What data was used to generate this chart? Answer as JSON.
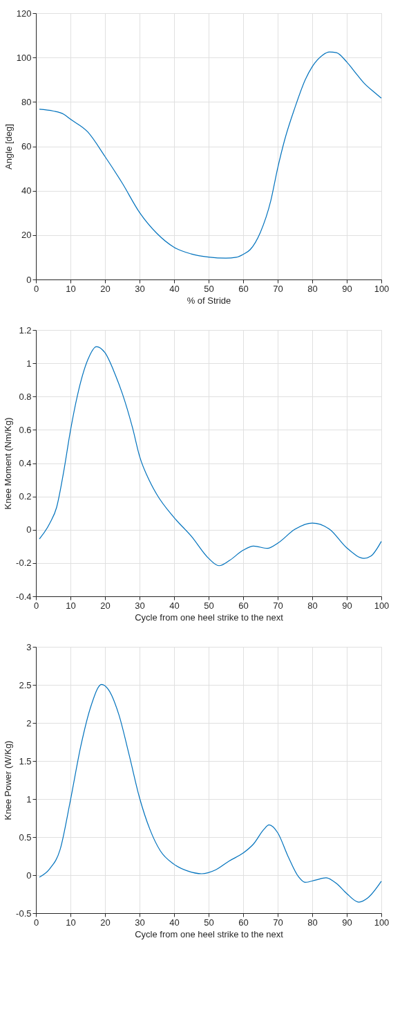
{
  "chart_data": [
    {
      "type": "line",
      "xlabel": "% of Stride",
      "ylabel": "Angle [deg]",
      "grid": true,
      "x": [
        1,
        5,
        8,
        10,
        15,
        20,
        25,
        30,
        35,
        40,
        45,
        50,
        55,
        58,
        60,
        62,
        65,
        68,
        70,
        72,
        75,
        78,
        80,
        83,
        85,
        87,
        90,
        93,
        95,
        98,
        100
      ],
      "series": [
        {
          "color": "#0072bd",
          "values": [
            76.7,
            75.9,
            74.5,
            72.2,
            66.5,
            55.4,
            43.4,
            30.2,
            20.8,
            14.5,
            11.5,
            10.1,
            9.6,
            10,
            11.3,
            13.4,
            21.3,
            35.5,
            50.2,
            62.8,
            77.5,
            90.1,
            95.9,
            101.1,
            102.5,
            102.2,
            98,
            92.2,
            88.5,
            84.3,
            81.7
          ]
        }
      ],
      "xlim": [
        0,
        100
      ],
      "xticks": [
        0,
        10,
        20,
        30,
        40,
        50,
        60,
        70,
        80,
        90,
        100
      ],
      "ylim": [
        0,
        120
      ],
      "yticks": [
        0,
        20,
        40,
        60,
        80,
        100,
        120
      ]
    },
    {
      "type": "line",
      "xlabel": "Cycle from one heel strike to the next",
      "ylabel": "Knee Moment (Nm/Kg)",
      "grid": true,
      "x": [
        1,
        4,
        6,
        8,
        10,
        12,
        15,
        17.5,
        20,
        23,
        25,
        28,
        30,
        33,
        35,
        40,
        45,
        50,
        53,
        56,
        60,
        63,
        67,
        70,
        75,
        80,
        85,
        90,
        95,
        97,
        100
      ],
      "series": [
        {
          "color": "#0072bd",
          "values": [
            -0.056,
            0.038,
            0.135,
            0.344,
            0.596,
            0.805,
            1.02,
            1.1,
            1.063,
            0.93,
            0.819,
            0.61,
            0.442,
            0.289,
            0.212,
            0.073,
            -0.039,
            -0.172,
            -0.216,
            -0.185,
            -0.123,
            -0.098,
            -0.112,
            -0.081,
            0.003,
            0.04,
            0.003,
            -0.109,
            -0.172,
            -0.158,
            -0.07
          ]
        }
      ],
      "xlim": [
        0,
        100
      ],
      "xticks": [
        0,
        10,
        20,
        30,
        40,
        50,
        60,
        70,
        80,
        90,
        100
      ],
      "ylim": [
        -0.4,
        1.2
      ],
      "yticks": [
        -0.4,
        -0.2,
        0,
        0.2,
        0.4,
        0.6,
        0.8,
        1,
        1.2
      ]
    },
    {
      "type": "line",
      "xlabel": "Cycle from one heel strike to the next",
      "ylabel": "Knee Power (W/Kg)",
      "grid": true,
      "x": [
        1,
        4,
        7,
        10,
        13,
        16,
        19,
        21,
        24,
        27,
        30,
        33,
        36,
        40,
        44,
        48,
        52,
        56,
        60,
        63,
        66,
        67.5,
        70,
        73,
        76,
        78,
        81,
        84,
        87,
        90,
        93.5,
        96,
        100
      ],
      "series": [
        {
          "color": "#0072bd",
          "values": [
            -0.027,
            0.083,
            0.335,
            0.986,
            1.697,
            2.23,
            2.505,
            2.437,
            2.11,
            1.578,
            1.016,
            0.601,
            0.32,
            0.142,
            0.053,
            0.018,
            0.068,
            0.187,
            0.29,
            0.409,
            0.601,
            0.66,
            0.557,
            0.246,
            -0.02,
            -0.095,
            -0.065,
            -0.036,
            -0.11,
            -0.243,
            -0.355,
            -0.302,
            -0.08
          ]
        }
      ],
      "xlim": [
        0,
        100
      ],
      "xticks": [
        0,
        10,
        20,
        30,
        40,
        50,
        60,
        70,
        80,
        90,
        100
      ],
      "ylim": [
        -0.5,
        3
      ],
      "yticks": [
        -0.5,
        0,
        0.5,
        1,
        1.5,
        2,
        2.5,
        3
      ]
    }
  ]
}
